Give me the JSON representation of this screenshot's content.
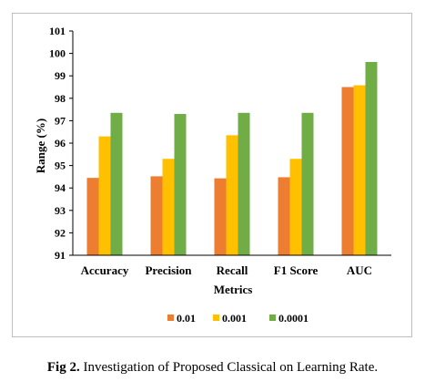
{
  "chart_data": {
    "type": "bar",
    "title": "",
    "xlabel": "Metrics",
    "ylabel": "Range (%)",
    "ylim": [
      91,
      101
    ],
    "yticks": [
      91,
      92,
      93,
      94,
      95,
      96,
      97,
      98,
      99,
      100,
      101
    ],
    "categories": [
      "Accuracy",
      "Precision",
      "Recall",
      "F1 Score",
      "AUC"
    ],
    "series": [
      {
        "name": "0.01",
        "color": "#ED7D31",
        "values": [
          94.45,
          94.52,
          94.43,
          94.48,
          98.5
        ]
      },
      {
        "name": "0.001",
        "color": "#FFC000",
        "values": [
          96.3,
          95.3,
          96.35,
          95.3,
          98.58
        ]
      },
      {
        "name": "0.0001",
        "color": "#70AD47",
        "values": [
          97.35,
          97.3,
          97.35,
          97.35,
          99.62
        ]
      }
    ],
    "legend_position": "bottom",
    "grid": false
  },
  "caption": {
    "label": "Fig 2.",
    "text": " Investigation of Proposed Classical on Learning Rate."
  }
}
